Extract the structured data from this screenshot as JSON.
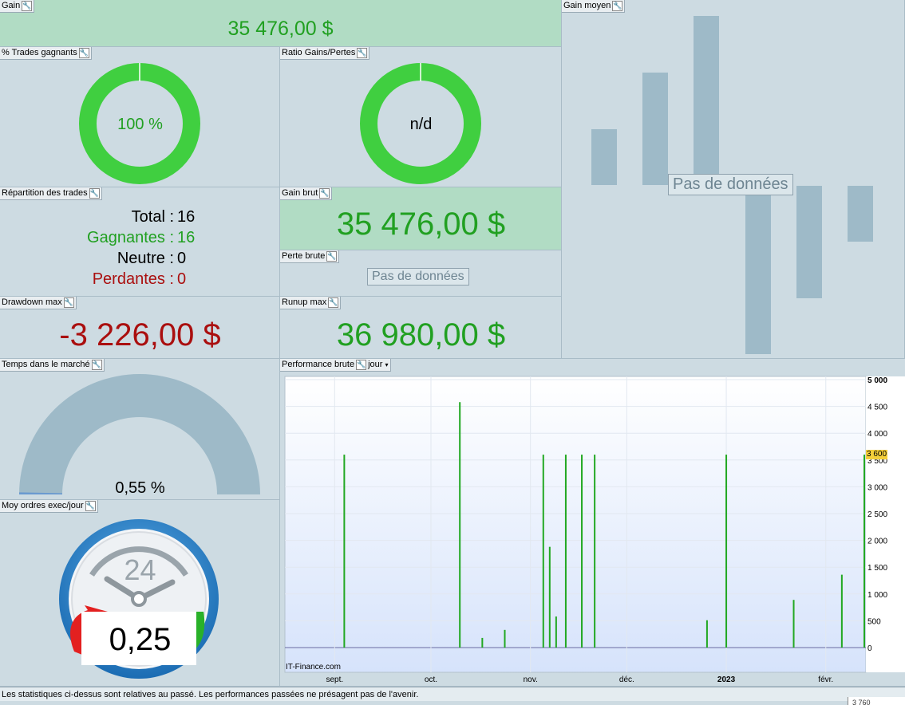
{
  "gain": {
    "label": "Gain",
    "value": "35 476,00 $"
  },
  "trades_gagnants": {
    "label": "% Trades gagnants",
    "value": "100 %"
  },
  "ratio_gains_pertes": {
    "label": "Ratio Gains/Pertes",
    "value": "n/d"
  },
  "gain_moyen": {
    "label": "Gain moyen",
    "nodata": "Pas de données"
  },
  "repartition": {
    "label": "Répartition des trades",
    "rows": [
      {
        "label": "Total :",
        "value": "16"
      },
      {
        "label": "Gagnantes :",
        "value": "16"
      },
      {
        "label": "Neutre :",
        "value": "0"
      },
      {
        "label": "Perdantes :",
        "value": "0"
      }
    ]
  },
  "gain_brut": {
    "label": "Gain brut",
    "value": "35 476,00 $"
  },
  "perte_brute": {
    "label": "Perte brute",
    "nodata": "Pas de données"
  },
  "drawdown": {
    "label": "Drawdown max",
    "value": "-3 226,00 $"
  },
  "runup": {
    "label": "Runup max",
    "value": "36 980,00 $"
  },
  "temps_marche": {
    "label": "Temps dans le marché",
    "value": "0,55 %",
    "fraction": 0.0055
  },
  "moy_ordres": {
    "label": "Moy ordres exec/jour",
    "clock_number": "24",
    "value": "0,25"
  },
  "performance": {
    "label": "Performance brute",
    "period": "jour",
    "watermark": "IT-Finance.com",
    "current_label": "3 600",
    "colors": {
      "bar": "#22a822",
      "highlight": "#f3cf3a"
    }
  },
  "chart_data": {
    "type": "bar",
    "ylim": [
      0,
      5000
    ],
    "yticks": [
      "5 000",
      "4 500",
      "4 000",
      "3 500",
      "3 000",
      "2 500",
      "2 000",
      "1 500",
      "1 000",
      "500",
      "0"
    ],
    "ytick_values": [
      5000,
      4500,
      4000,
      3500,
      3000,
      2500,
      2000,
      1500,
      1000,
      500,
      0
    ],
    "xticks": [
      {
        "label": "sept.",
        "day": 14
      },
      {
        "label": "oct.",
        "day": 44
      },
      {
        "label": "nov.",
        "day": 75
      },
      {
        "label": "déc.",
        "day": 105
      },
      {
        "label": "2023",
        "day": 136
      },
      {
        "label": "févr.",
        "day": 167
      }
    ],
    "xrange": [
      0,
      178
    ],
    "bars": [
      {
        "day": 17,
        "value": 3600
      },
      {
        "day": 53,
        "value": 4580
      },
      {
        "day": 60,
        "value": 180
      },
      {
        "day": 67,
        "value": 330
      },
      {
        "day": 79,
        "value": 3600
      },
      {
        "day": 81,
        "value": 1880
      },
      {
        "day": 83,
        "value": 580
      },
      {
        "day": 86,
        "value": 3600
      },
      {
        "day": 91,
        "value": 3600
      },
      {
        "day": 95,
        "value": 3600
      },
      {
        "day": 130,
        "value": 510
      },
      {
        "day": 136,
        "value": 3600
      },
      {
        "day": 157,
        "value": 890
      },
      {
        "day": 172,
        "value": 1360
      },
      {
        "day": 179,
        "value": 3600
      }
    ]
  },
  "footer": {
    "disclaimer": "Les statistiques ci-dessus sont relatives au passé. Les performances passées ne présagent pas de l'avenir.",
    "corner": "3 760"
  }
}
